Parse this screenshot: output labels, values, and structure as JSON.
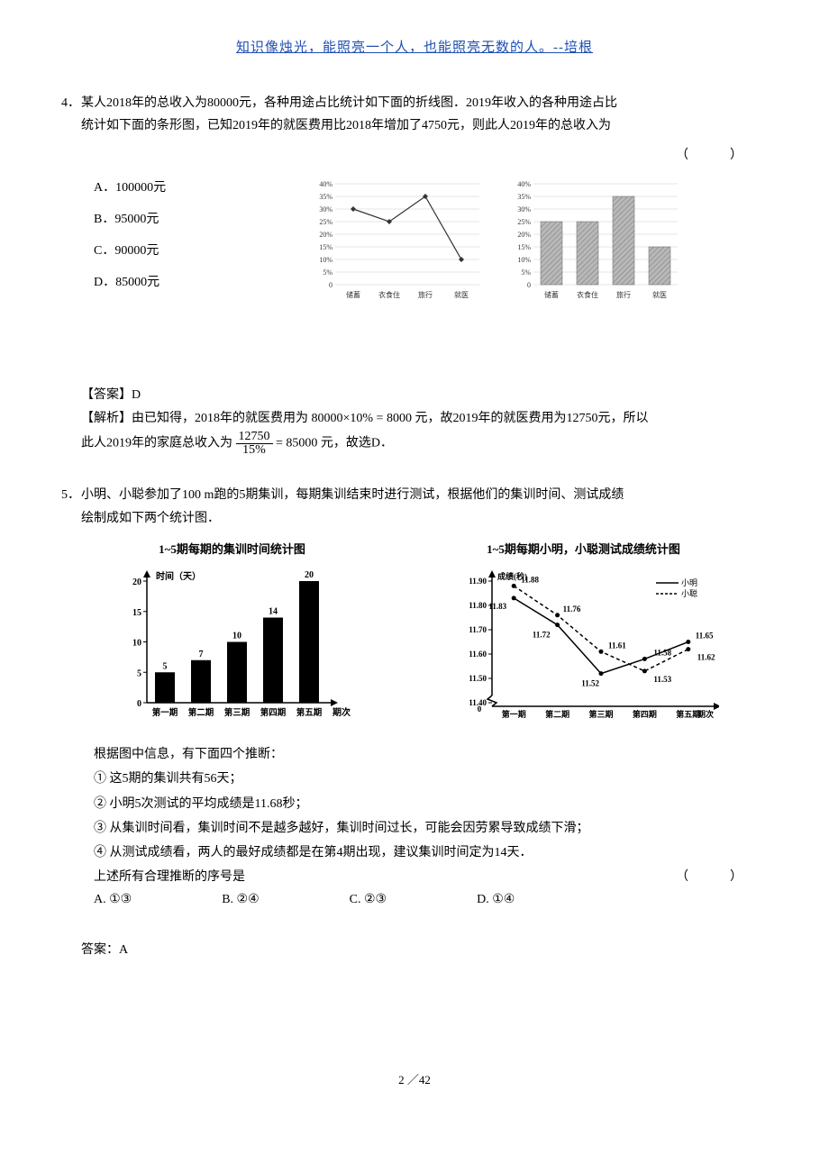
{
  "header_quote": "知识像烛光，能照亮一个人，也能照亮无数的人。--培根",
  "q4": {
    "num": "4．",
    "text_l1": "某人2018年的总收入为80000元，各种用途占比统计如下面的折线图．2019年收入的各种用途占比",
    "text_l2": "统计如下面的条形图，已知2019年的就医费用比2018年增加了4750元，则此人2019年的总收入为",
    "paren": "（　　）",
    "options": {
      "a": "A．100000元",
      "b": "B．95000元",
      "c": "C．90000元",
      "d": "D．85000元"
    },
    "line_chart": {
      "categories": [
        "储蓄",
        "衣食住",
        "旅行",
        "就医"
      ],
      "values": [
        30,
        25,
        35,
        10
      ],
      "ylim": [
        0,
        40
      ],
      "ytick_step": 5,
      "tick_labels": [
        "0",
        "5%",
        "10%",
        "15%",
        "20%",
        "25%",
        "30%",
        "35%",
        "40%"
      ],
      "line_color": "#333333",
      "marker": "diamond",
      "grid_color": "#cccccc",
      "font_size": 8
    },
    "bar_chart": {
      "categories": [
        "储蓄",
        "衣食住",
        "旅行",
        "就医"
      ],
      "values": [
        25,
        25,
        35,
        15
      ],
      "ylim": [
        0,
        40
      ],
      "ytick_step": 5,
      "tick_labels": [
        "0",
        "5%",
        "10%",
        "15%",
        "20%",
        "25%",
        "30%",
        "35%",
        "40%"
      ],
      "bar_color": "#b8b8b8",
      "hatch": "diagonal",
      "grid_color": "#cccccc",
      "font_size": 8
    }
  },
  "ans4": {
    "label": "【答案】",
    "ans": "D",
    "exp_label": "【解析】",
    "exp_1": "由已知得，2018年的就医费用为 80000×10% = 8000 元，故2019年的就医费用为12750元，所以",
    "exp_2a": "此人2019年的家庭总收入为",
    "frac_num": "12750",
    "frac_den": "15%",
    "exp_2b": "= 85000 元，故选D．"
  },
  "q5": {
    "num": "5．",
    "text_l1": "小明、小聪参加了100 m跑的5期集训，每期集训结束时进行测试，根据他们的集训时间、测试成绩",
    "text_l2": "绘制成如下两个统计图．",
    "chart1": {
      "title": "1~5期每期的集训时间统计图",
      "ylabel": "时间（天）",
      "xlabel": "期次",
      "categories": [
        "第一期",
        "第二期",
        "第三期",
        "第四期",
        "第五期"
      ],
      "values": [
        5,
        7,
        10,
        14,
        20
      ],
      "yticks": [
        0,
        5,
        10,
        15,
        20
      ],
      "bar_color": "#000000",
      "font_size": 10
    },
    "chart2": {
      "title": "1~5期每期小明，小聪测试成绩统计图",
      "ylabel": "成绩(秒)",
      "xlabel": "期次",
      "categories": [
        "第一期",
        "第二期",
        "第三期",
        "第四期",
        "第五期"
      ],
      "yticks": [
        11.4,
        11.5,
        11.6,
        11.7,
        11.8,
        11.9
      ],
      "ytick_labels": [
        "11.40",
        "11.50",
        "11.60",
        "11.70",
        "11.80",
        "11.90"
      ],
      "series": [
        {
          "name": "小明",
          "style": "solid",
          "values": [
            11.83,
            11.72,
            11.52,
            11.58,
            11.65
          ]
        },
        {
          "name": "小聪",
          "style": "dashed",
          "values": [
            11.88,
            11.76,
            11.61,
            11.53,
            11.62
          ]
        }
      ],
      "legend": {
        "小明": "小明",
        "小聪": "小聪"
      },
      "font_size": 9
    },
    "intro": "根据图中信息，有下面四个推断：",
    "s1": "① 这5期的集训共有56天；",
    "s2": "② 小明5次测试的平均成绩是11.68秒；",
    "s3": "③ 从集训时间看，集训时间不是越多越好，集训时间过长，可能会因劳累导致成绩下滑；",
    "s4": "④ 从测试成绩看，两人的最好成绩都是在第4期出现，建议集训时间定为14天．",
    "concl": "上述所有合理推断的序号是",
    "paren": "（　　）",
    "options": {
      "a": "A. ①③",
      "b": "B. ②④",
      "c": "C. ②③",
      "d": "D. ①④"
    }
  },
  "ans5": {
    "label": "答案：",
    "ans": "A"
  },
  "page": "2 ／42"
}
